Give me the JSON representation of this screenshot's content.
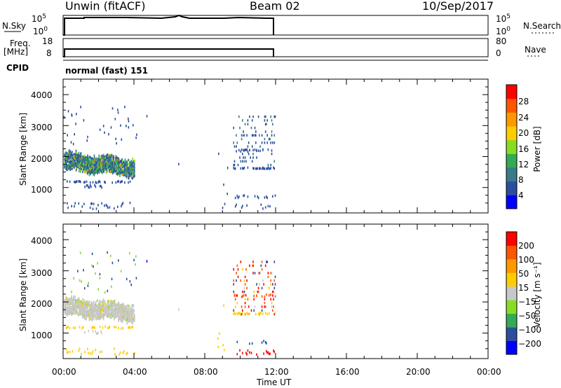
{
  "header": {
    "station": "Unwin (fitACF)",
    "beam": "Beam 02",
    "date": "10/Sep/2017"
  },
  "left_labels": {
    "nsky": "N.Sky",
    "freq_1": "Freq.",
    "freq_2": "[MHz]",
    "cpid": "CPID"
  },
  "right_labels": {
    "nsearch": "N.Search",
    "nave": "Nave"
  },
  "top_panels": {
    "nsky_ticks": [
      "10^5",
      "10^0"
    ],
    "nsky_right_ticks": [
      "10^5",
      "10^0"
    ],
    "freq_ticks": [
      "18",
      "8"
    ],
    "nave_ticks": [
      "80",
      "0"
    ],
    "cpid_text": "normal (fast) 151"
  },
  "colors": {
    "power_scale": [
      "#0000ff",
      "#2a4fa0",
      "#3a7a8a",
      "#33aa55",
      "#88dd22",
      "#ffcc00",
      "#ff9900",
      "#ff5500",
      "#ff0000"
    ],
    "velocity_scale": [
      "#ff0000",
      "#ff5500",
      "#ff9900",
      "#ffcc00",
      "#c8c8c8",
      "#88dd22",
      "#33aa55",
      "#2a4fa0",
      "#0000ff"
    ]
  },
  "chart_data": [
    {
      "type": "heatmap",
      "panel": "power",
      "ylabel": "Slant Range [km]",
      "xlabel": "",
      "xlim": [
        "00:00",
        "24:00"
      ],
      "ylim": [
        180,
        4500
      ],
      "y_ticks": [
        "1000",
        "2000",
        "3000",
        "4000"
      ],
      "colorbar_label": "Power [dB]",
      "colorbar_ticks": [
        "4",
        "8",
        "12",
        "16",
        "20",
        "24",
        "28"
      ],
      "regions": [
        {
          "t_start": 0.0,
          "t_end": 4.0,
          "r_start": 1500,
          "r_end": 2100,
          "level": "4-20 dB"
        },
        {
          "t_start": 9.5,
          "t_end": 12.0,
          "r_start": 1500,
          "r_end": 2400,
          "level": "4-8 dB"
        }
      ]
    },
    {
      "type": "heatmap",
      "panel": "velocity",
      "ylabel": "Slant Range [km]",
      "xlabel": "Time UT",
      "x_ticks": [
        "00:00",
        "04:00",
        "08:00",
        "12:00",
        "16:00",
        "20:00",
        "00:00"
      ],
      "xlim": [
        "00:00",
        "24:00"
      ],
      "ylim": [
        180,
        4500
      ],
      "y_ticks": [
        "1000",
        "2000",
        "3000",
        "4000"
      ],
      "colorbar_label": "Velocity [m s⁻¹]",
      "colorbar_ticks": [
        "200",
        "100",
        "50",
        "15",
        "−15",
        "−50",
        "−100",
        "−200"
      ],
      "regions": [
        {
          "t_start": 0.0,
          "t_end": 4.0,
          "r_start": 1400,
          "r_end": 2200,
          "level": "-15 to 15 m/s"
        },
        {
          "t_start": 9.5,
          "t_end": 12.0,
          "r_start": 1500,
          "r_end": 3400,
          "level": "-200 to 200 m/s"
        }
      ]
    }
  ]
}
